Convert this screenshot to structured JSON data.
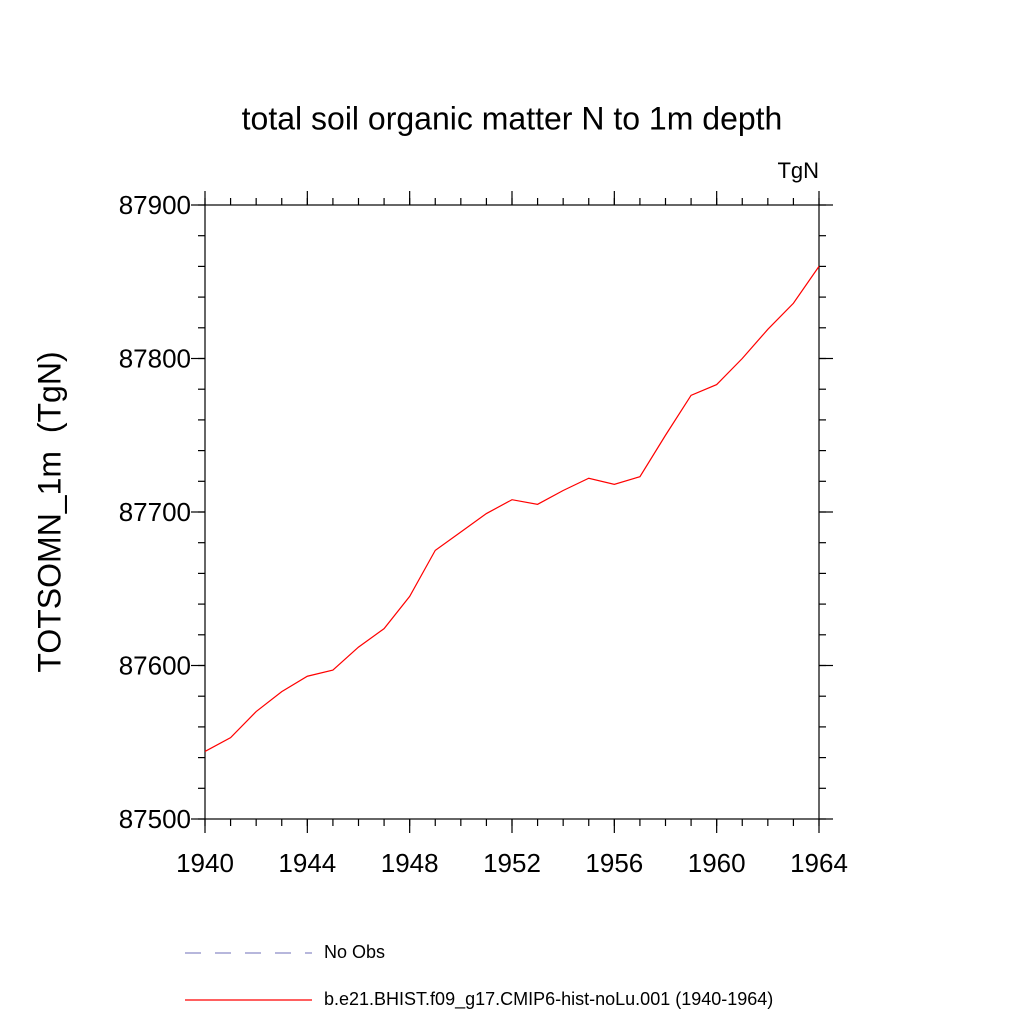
{
  "chart_data": {
    "type": "line",
    "title": "total soil organic matter N to 1m depth",
    "units": "TgN",
    "y_label": "TOTSOMN_1m  (TgN)",
    "x": [
      1940,
      1941,
      1942,
      1943,
      1944,
      1945,
      1946,
      1947,
      1948,
      1949,
      1950,
      1951,
      1952,
      1953,
      1954,
      1955,
      1956,
      1957,
      1958,
      1959,
      1960,
      1961,
      1962,
      1963,
      1964
    ],
    "series": [
      {
        "name": "b.e21.BHIST.f09_g17.CMIP6-hist-noLu.001 (1940-1964)",
        "color": "#ff0000",
        "values": [
          87544,
          87553,
          87570,
          87583,
          87593,
          87597,
          87612,
          87624,
          87645,
          87675,
          87687,
          87699,
          87708,
          87705,
          87714,
          87722,
          87718,
          87723,
          87750,
          87776,
          87783,
          87800,
          87819,
          87836,
          87860
        ]
      }
    ],
    "no_obs_entry": {
      "name": "No Obs",
      "color": "#8c8cc8"
    },
    "xlim": [
      1940,
      1964
    ],
    "xticks": [
      1940,
      1944,
      1948,
      1952,
      1956,
      1960,
      1964
    ],
    "xminor_step": 1,
    "ylim": [
      87500,
      87900
    ],
    "yticks": [
      87500,
      87600,
      87700,
      87800,
      87900
    ],
    "yminor_step": 20
  }
}
